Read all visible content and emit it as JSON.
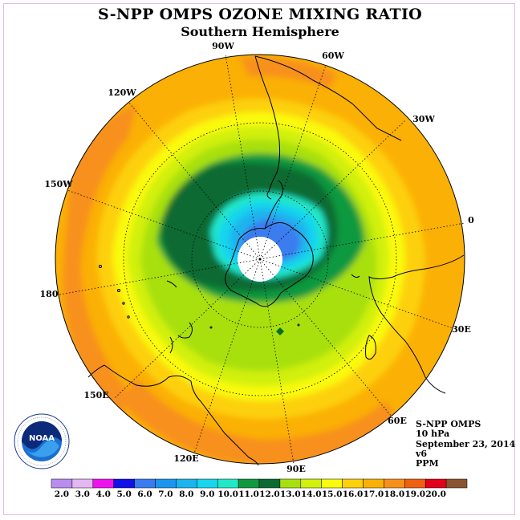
{
  "title": "S-NPP OMPS OZONE MIXING RATIO",
  "subtitle": "Southern Hemisphere",
  "longitude_labels": [
    "90W",
    "60W",
    "30W",
    "0",
    "30E",
    "60E",
    "90E",
    "120E",
    "150E",
    "180",
    "150W",
    "120W"
  ],
  "info": {
    "instrument": "S-NPP OMPS",
    "level": "10 hPa",
    "date": "September 23, 2014",
    "version": "v6",
    "units": "PPM"
  },
  "colorbar": {
    "ticks": [
      "2.0",
      "3.0",
      "4.0",
      "5.0",
      "6.0",
      "7.0",
      "8.0",
      "9.0",
      "10.0",
      "11.0",
      "12.0",
      "13.0",
      "14.0",
      "15.0",
      "16.0",
      "17.0",
      "18.0",
      "19.0",
      "20.0"
    ],
    "colors": [
      "#b98cf0",
      "#e3b7f2",
      "#ee13ee",
      "#1010e8",
      "#3a7cef",
      "#1a96ee",
      "#1ab4ee",
      "#19d5ee",
      "#20e8c8",
      "#119940",
      "#0b6a32",
      "#a8e00f",
      "#d2f00e",
      "#fafa0b",
      "#fdd00a",
      "#fbb005",
      "#f7901a",
      "#f06010",
      "#e3001a",
      "#8a5430"
    ]
  },
  "logo": {
    "text": "NOAA",
    "ring_text": "NATIONAL OCEANIC AND ATMOSPHERIC ADMINISTRATION · U.S. DEPARTMENT OF COMMERCE"
  },
  "colors": {
    "frame": "#e7b9e7",
    "polar_cap": "#ffffff",
    "land_outline": "#000000"
  }
}
